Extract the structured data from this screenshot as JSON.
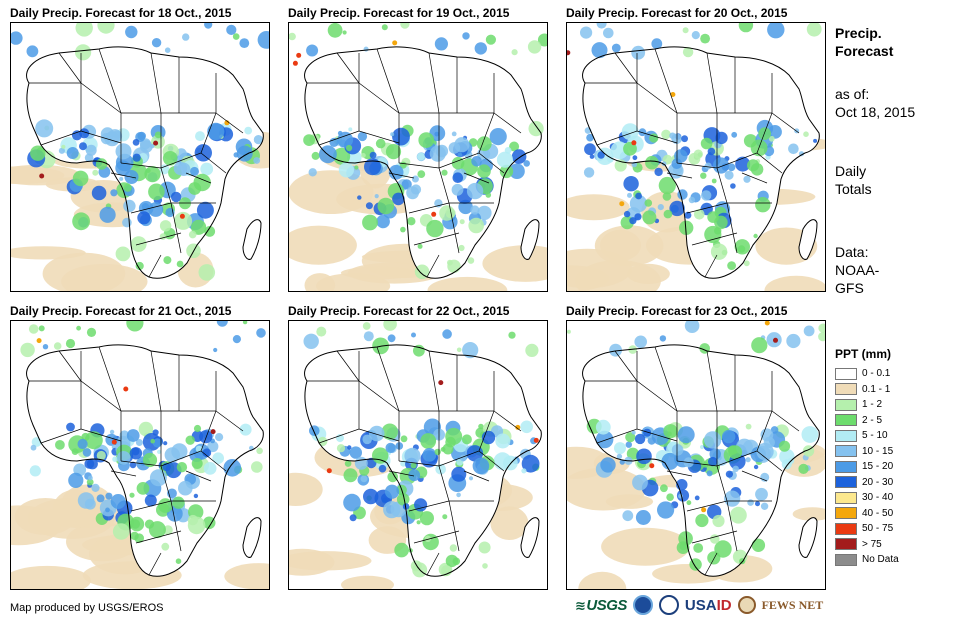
{
  "panels": [
    {
      "title": "Daily Precip. Forecast for 18 Oct., 2015"
    },
    {
      "title": "Daily Precip. Forecast for 19 Oct., 2015"
    },
    {
      "title": "Daily Precip. Forecast for 20 Oct., 2015"
    },
    {
      "title": "Daily Precip. Forecast for 21 Oct., 2015"
    },
    {
      "title": "Daily Precip. Forecast for 22 Oct., 2015"
    },
    {
      "title": "Daily Precip. Forecast for 23 Oct., 2015"
    }
  ],
  "sidebar": {
    "title_line1": "Precip.",
    "title_line2": "Forecast",
    "asof_line1": "as of:",
    "asof_line2": "Oct 18, 2015",
    "totals_line1": "Daily",
    "totals_line2": "Totals",
    "data_line1": "Data:",
    "data_line2": "NOAA-",
    "data_line3": "GFS"
  },
  "legend": {
    "title": "PPT (mm)",
    "items": [
      {
        "label": "0 - 0.1",
        "color": "#ffffff"
      },
      {
        "label": "0.1 - 1",
        "color": "#f0dcb8"
      },
      {
        "label": "1 - 2",
        "color": "#b5f0ad"
      },
      {
        "label": "2 - 5",
        "color": "#6ddc6d"
      },
      {
        "label": "5 - 10",
        "color": "#b2ecf4"
      },
      {
        "label": "10 - 15",
        "color": "#85c2ef"
      },
      {
        "label": "15 - 20",
        "color": "#4c9be6"
      },
      {
        "label": "20 - 30",
        "color": "#1c62dc"
      },
      {
        "label": "30 - 40",
        "color": "#fce88e"
      },
      {
        "label": "40 - 50",
        "color": "#f4a70c"
      },
      {
        "label": "50 - 75",
        "color": "#ea3a12"
      },
      {
        "label": "> 75",
        "color": "#a31c1c"
      },
      {
        "label": "No Data",
        "color": "#8c8c8c"
      }
    ]
  },
  "footer": {
    "credit": "Map produced by USGS/EROS",
    "logo_usgs": "USGS",
    "logo_usaid_a": "USA",
    "logo_usaid_b": "ID",
    "logo_fews": "FEWS NET"
  }
}
